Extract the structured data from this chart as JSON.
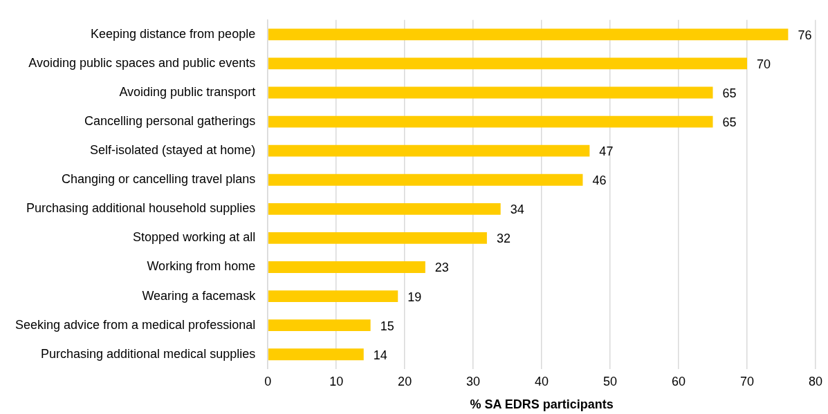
{
  "chart_data": {
    "type": "bar",
    "orientation": "horizontal",
    "xlabel": "% SA EDRS participants",
    "categories": [
      "Keeping distance from people",
      "Avoiding public spaces and public events",
      "Avoiding public transport",
      "Cancelling personal gatherings",
      "Self-isolated (stayed at home)",
      "Changing or cancelling travel plans",
      "Purchasing additional household supplies",
      "Stopped working at all",
      "Working from home",
      "Wearing a facemask",
      "Seeking advice from a medical professional",
      "Purchasing additional medical supplies"
    ],
    "values": [
      76,
      70,
      65,
      65,
      47,
      46,
      34,
      32,
      23,
      19,
      15,
      14
    ],
    "color": "#ffcc00",
    "xlim": [
      0,
      80
    ],
    "xticks": [
      0,
      10,
      20,
      30,
      40,
      50,
      60,
      70,
      80
    ],
    "grid": "x",
    "legend": false,
    "data_labels": true
  }
}
